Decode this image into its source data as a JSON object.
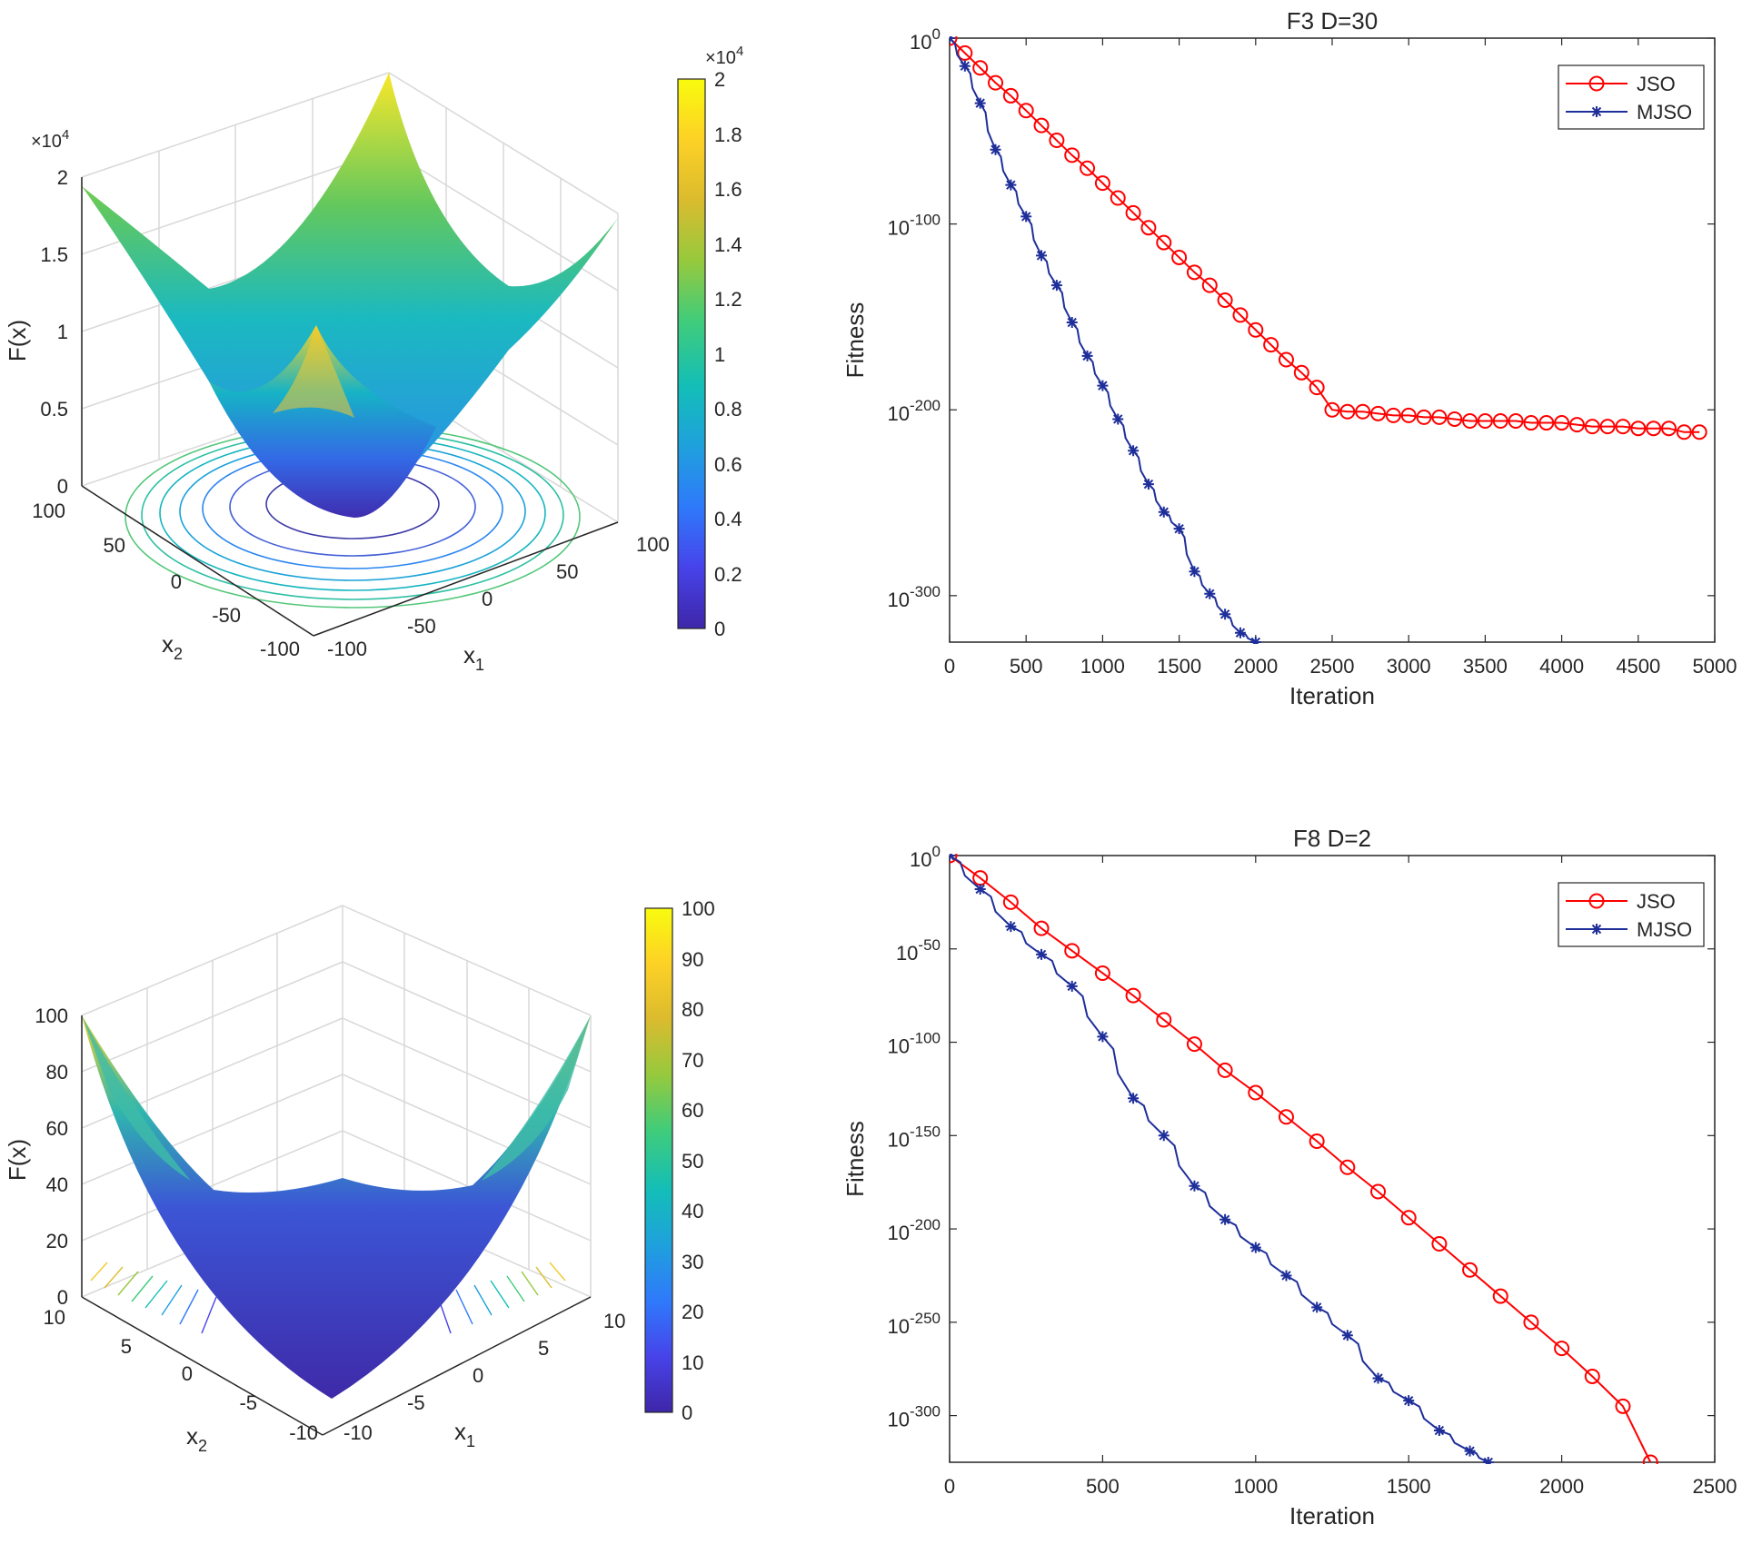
{
  "chart_data": [
    {
      "type": "surface3d",
      "panel": "top-left",
      "function": "sphere",
      "zlabel": "F(x)",
      "xlabel": "x",
      "xlabel_sub": "1",
      "ylabel": "x",
      "ylabel_sub": "2",
      "x_range": [
        -100,
        100
      ],
      "y_range": [
        -100,
        100
      ],
      "z_range": [
        0,
        20000
      ],
      "x_ticks": [
        "-100",
        "-50",
        "0",
        "50",
        "100"
      ],
      "y_ticks": [
        "-100",
        "-50",
        "0",
        "50",
        "100"
      ],
      "z_ticks": [
        "0",
        "0.5",
        "1",
        "1.5",
        "2"
      ],
      "z_exponent": "×10",
      "z_exponent_power": "4",
      "colorbar_ticks": [
        "0",
        "0.2",
        "0.4",
        "0.6",
        "0.8",
        "1",
        "1.2",
        "1.4",
        "1.6",
        "1.8",
        "2"
      ],
      "colorbar_exponent": "×10",
      "colorbar_exponent_power": "4",
      "colormap": [
        "#3e26a8",
        "#4743e9",
        "#2f79fb",
        "#1fa0dd",
        "#13beb8",
        "#40cc7a",
        "#97c93d",
        "#dbbb2e",
        "#fdd126",
        "#f9fb0e"
      ]
    },
    {
      "type": "line",
      "panel": "top-right",
      "title": "F3 D=30",
      "xlabel": "Iteration",
      "ylabel": "Fitness",
      "yscale": "log",
      "xlim": [
        0,
        5000
      ],
      "ylim_exp": [
        -325,
        0
      ],
      "x_ticks": [
        "0",
        "500",
        "1000",
        "1500",
        "2000",
        "2500",
        "3000",
        "3500",
        "4000",
        "4500",
        "5000"
      ],
      "y_ticks": [
        {
          "base": "10",
          "exp": "0",
          "value": 0
        },
        {
          "base": "10",
          "exp": "-100",
          "value": -100
        },
        {
          "base": "10",
          "exp": "-200",
          "value": -200
        },
        {
          "base": "10",
          "exp": "-300",
          "value": -300
        }
      ],
      "legend": "top-right",
      "series": [
        {
          "name": "JSO",
          "color": "#ff0000",
          "marker": "circle",
          "x": [
            0,
            100,
            200,
            300,
            400,
            500,
            600,
            700,
            800,
            900,
            1000,
            1100,
            1200,
            1300,
            1400,
            1500,
            1600,
            1700,
            1800,
            1900,
            2000,
            2100,
            2200,
            2300,
            2400,
            2500,
            2600,
            2700,
            2800,
            2900,
            3000,
            3100,
            3200,
            3300,
            3400,
            3500,
            3600,
            3700,
            3800,
            3900,
            4000,
            4100,
            4200,
            4300,
            4400,
            4500,
            4600,
            4700,
            4800,
            4900
          ],
          "y_log10": [
            0,
            -8,
            -16,
            -24,
            -31,
            -39,
            -47,
            -55,
            -63,
            -70,
            -78,
            -86,
            -94,
            -102,
            -110,
            -118,
            -126,
            -133,
            -141,
            -149,
            -157,
            -165,
            -173,
            -180,
            -188,
            -200,
            -201,
            -201,
            -202,
            -203,
            -203,
            -204,
            -204,
            -205,
            -206,
            -206,
            -206,
            -206,
            -207,
            -207,
            -207,
            -208,
            -209,
            -209,
            -209,
            -210,
            -210,
            -210,
            -212,
            -212
          ]
        },
        {
          "name": "MJSO",
          "color": "#1f2f9a",
          "marker": "star",
          "x": [
            0,
            100,
            200,
            300,
            400,
            500,
            600,
            700,
            800,
            900,
            1000,
            1100,
            1200,
            1300,
            1400,
            1500,
            1600,
            1700,
            1800,
            1900,
            2000
          ],
          "y_log10": [
            0,
            -15,
            -35,
            -60,
            -79,
            -96,
            -117,
            -133,
            -153,
            -171,
            -187,
            -205,
            -222,
            -240,
            -255,
            -264,
            -287,
            -299,
            -310,
            -320,
            -325
          ]
        }
      ]
    },
    {
      "type": "surface3d",
      "panel": "bottom-left",
      "function": "step",
      "zlabel": "F(x)",
      "xlabel": "x",
      "xlabel_sub": "1",
      "ylabel": "x",
      "ylabel_sub": "2",
      "x_range": [
        -10,
        10
      ],
      "y_range": [
        -10,
        10
      ],
      "z_range": [
        0,
        100
      ],
      "x_ticks": [
        "-10",
        "-5",
        "0",
        "5",
        "10"
      ],
      "y_ticks": [
        "-10",
        "-5",
        "0",
        "5",
        "10"
      ],
      "z_ticks": [
        "0",
        "20",
        "40",
        "60",
        "80",
        "100"
      ],
      "colorbar_ticks": [
        "0",
        "10",
        "20",
        "30",
        "40",
        "50",
        "60",
        "70",
        "80",
        "90",
        "100"
      ],
      "colormap": [
        "#3e26a8",
        "#4743e9",
        "#2f79fb",
        "#1fa0dd",
        "#13beb8",
        "#40cc7a",
        "#97c93d",
        "#dbbb2e",
        "#fdd126",
        "#f9fb0e"
      ]
    },
    {
      "type": "line",
      "panel": "bottom-right",
      "title": "F8 D=2",
      "xlabel": "Iteration",
      "ylabel": "Fitness",
      "yscale": "log",
      "xlim": [
        0,
        2500
      ],
      "ylim_exp": [
        -325,
        0
      ],
      "x_ticks": [
        "0",
        "500",
        "1000",
        "1500",
        "2000",
        "2500"
      ],
      "y_ticks": [
        {
          "base": "10",
          "exp": "0",
          "value": 0
        },
        {
          "base": "10",
          "exp": "-50",
          "value": -50
        },
        {
          "base": "10",
          "exp": "-100",
          "value": -100
        },
        {
          "base": "10",
          "exp": "-150",
          "value": -150
        },
        {
          "base": "10",
          "exp": "-200",
          "value": -200
        },
        {
          "base": "10",
          "exp": "-250",
          "value": -250
        },
        {
          "base": "10",
          "exp": "-300",
          "value": -300
        }
      ],
      "legend": "top-right",
      "series": [
        {
          "name": "JSO",
          "color": "#ff0000",
          "marker": "circle",
          "x": [
            0,
            100,
            200,
            300,
            400,
            500,
            600,
            700,
            800,
            900,
            1000,
            1100,
            1200,
            1300,
            1400,
            1500,
            1600,
            1700,
            1800,
            1900,
            2000,
            2100,
            2200,
            2290
          ],
          "y_log10": [
            0,
            -12,
            -25,
            -39,
            -51,
            -63,
            -75,
            -88,
            -101,
            -115,
            -127,
            -140,
            -153,
            -167,
            -180,
            -194,
            -208,
            -222,
            -236,
            -250,
            -264,
            -279,
            -295,
            -325
          ]
        },
        {
          "name": "MJSO",
          "color": "#1f2f9a",
          "marker": "star",
          "x": [
            0,
            100,
            200,
            300,
            400,
            500,
            600,
            700,
            800,
            900,
            1000,
            1100,
            1200,
            1300,
            1400,
            1500,
            1600,
            1700,
            1760
          ],
          "y_log10": [
            0,
            -18,
            -38,
            -53,
            -70,
            -97,
            -130,
            -150,
            -177,
            -195,
            -210,
            -225,
            -242,
            -257,
            -280,
            -292,
            -308,
            -319,
            -325
          ]
        }
      ]
    }
  ]
}
